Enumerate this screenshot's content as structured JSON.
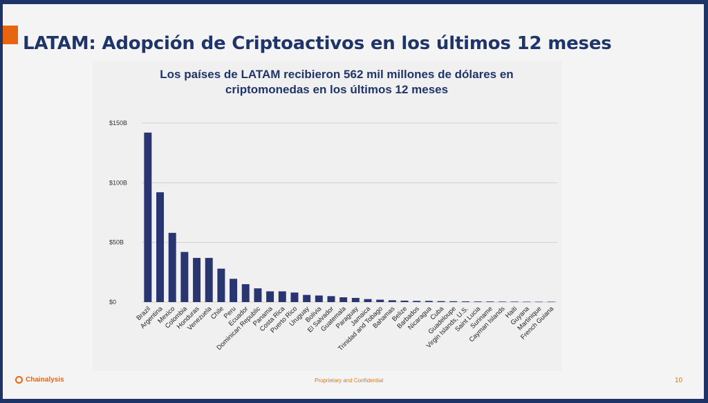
{
  "slide": {
    "title": "LATAM: Adopción de Criptoactivos en los últimos 12 meses",
    "footer_brand": "Chainalysis",
    "footer_center": "Proprietary and Confidential",
    "page_number": "10"
  },
  "colors": {
    "bar": "#283570",
    "title": "#1f3468",
    "accent": "#e8650f",
    "grid": "#cfcfcf"
  },
  "chart_data": {
    "type": "bar",
    "title_lines": [
      "Los países de LATAM recibieron 562 mil millones de dólares en",
      "criptomonedas en los últimos 12 meses"
    ],
    "xlabel": "",
    "ylabel": "",
    "ylim": [
      0,
      150
    ],
    "yticks": [
      0,
      50,
      100,
      150
    ],
    "ytick_labels": [
      "$0",
      "$50B",
      "$100B",
      "$150B"
    ],
    "grid": true,
    "legend": "none",
    "unit": "USD billions",
    "categories": [
      "Brazil",
      "Argentina",
      "Mexico",
      "Colombia",
      "Honduras",
      "Venezuela",
      "Chile",
      "Peru",
      "Ecuador",
      "Dominican Republic",
      "Panama",
      "Costa Rica",
      "Puerto Rico",
      "Uruguay",
      "Bolivia",
      "El Salvador",
      "Guatemala",
      "Paraguay",
      "Jamaica",
      "Trinidad and Tobago",
      "Bahamas",
      "Belize",
      "Barbados",
      "Nicaragua",
      "Cuba",
      "Guadeloupe",
      "Virgin Islands, U.S.",
      "Saint Lucia",
      "Suriname",
      "Cayman Islands",
      "Haiti",
      "Guyana",
      "Martinique",
      "French Guiana"
    ],
    "values": [
      142,
      92,
      58,
      42,
      37,
      37,
      28,
      19.5,
      15,
      11.5,
      9,
      9,
      8,
      6,
      5.5,
      5,
      4,
      3.5,
      2.5,
      2,
      1.5,
      1.2,
      1,
      1,
      0.8,
      0.7,
      0.6,
      0.5,
      0.5,
      0.4,
      0.4,
      0.3,
      0.3,
      0.3
    ]
  }
}
